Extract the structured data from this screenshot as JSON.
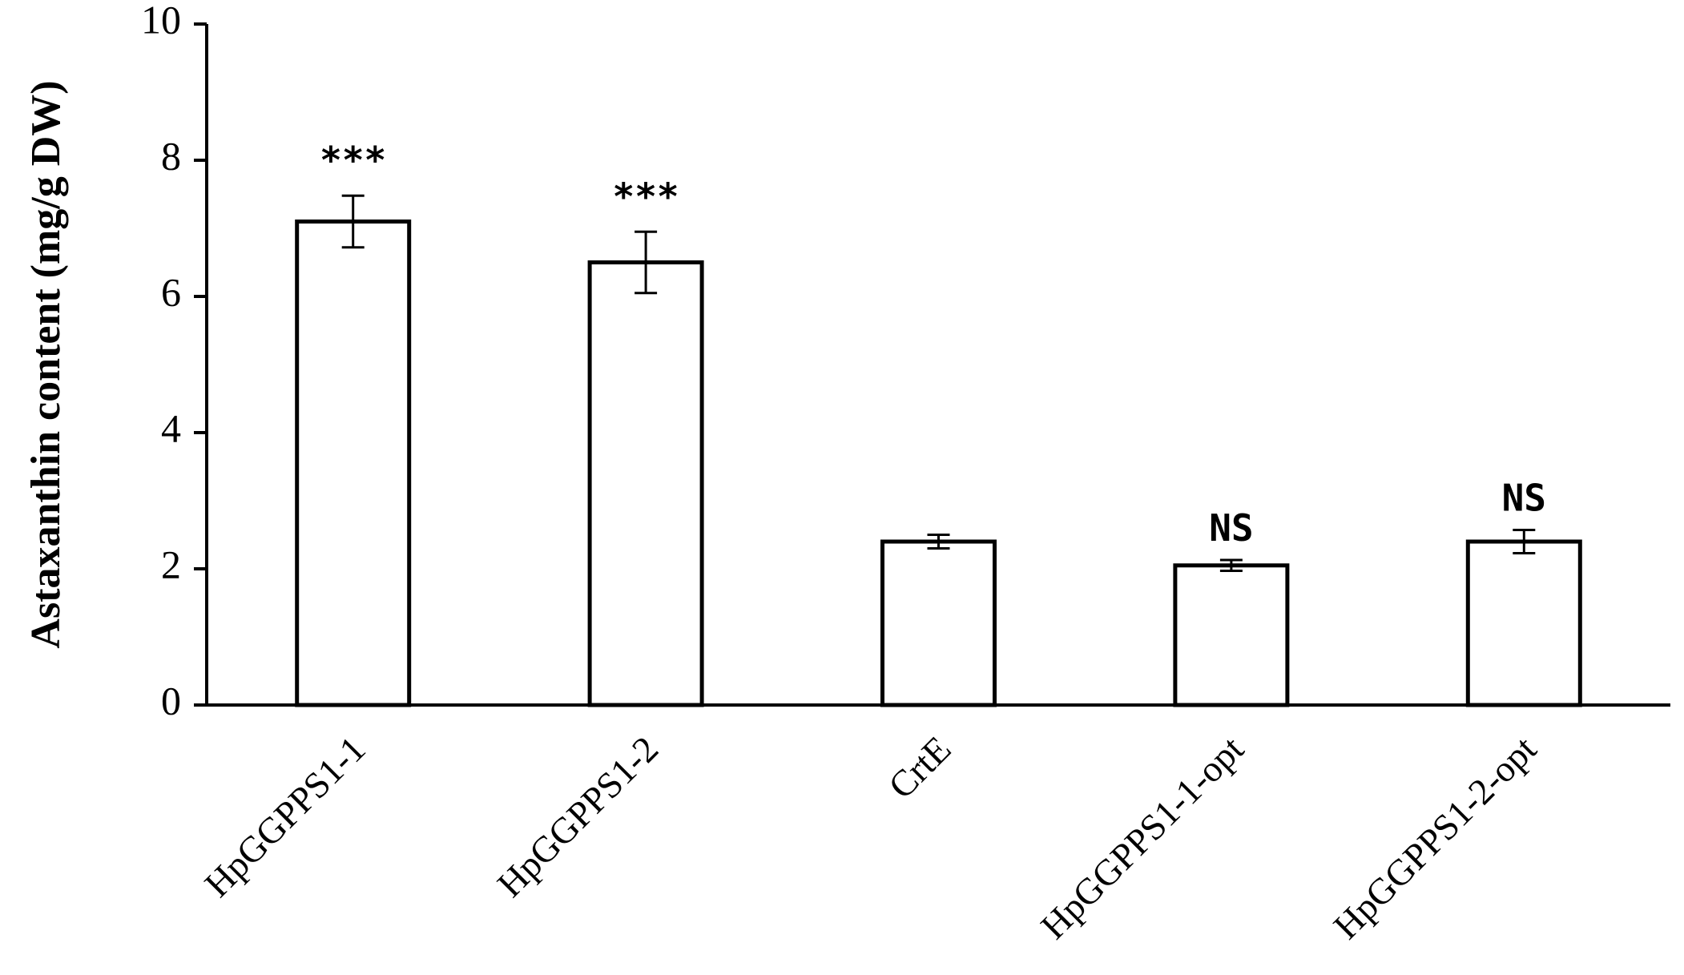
{
  "chart_data": {
    "type": "bar",
    "title": "",
    "xlabel": "",
    "ylabel": "Astaxanthin content (mg/g DW)",
    "ylim": [
      0,
      10
    ],
    "yticks": [
      0,
      2,
      4,
      6,
      8,
      10
    ],
    "categories": [
      "HpGGPPS1-1",
      "HpGGPPS1-2",
      "CrtE",
      "HpGGPPS1-1-opt",
      "HpGGPPS1-2-opt"
    ],
    "values": [
      7.1,
      6.5,
      2.4,
      2.05,
      2.4
    ],
    "errors": [
      0.38,
      0.45,
      0.1,
      0.08,
      0.17
    ],
    "annotations": [
      "***",
      "***",
      "",
      "NS",
      "NS"
    ],
    "bar_fill": "#ffffff",
    "bar_stroke": "#000000",
    "grid": false,
    "legend": "none"
  }
}
